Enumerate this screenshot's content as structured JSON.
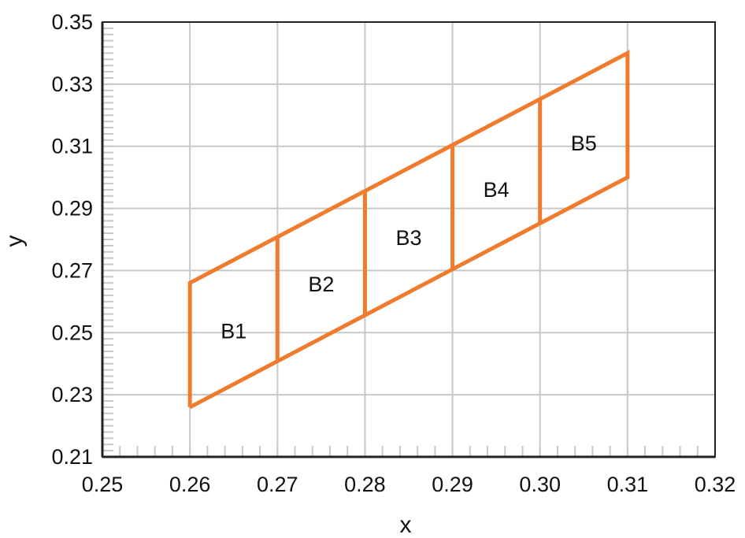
{
  "chart_data": {
    "type": "line",
    "title": "",
    "xlabel": "x",
    "ylabel": "y",
    "xlim": [
      0.25,
      0.32
    ],
    "ylim": [
      0.21,
      0.35
    ],
    "grid": true,
    "x_ticks": [
      "0.25",
      "0.26",
      "0.27",
      "0.28",
      "0.29",
      "0.30",
      "0.31",
      "0.32"
    ],
    "y_ticks": [
      "0.21",
      "0.23",
      "0.25",
      "0.27",
      "0.29",
      "0.31",
      "0.33",
      "0.35"
    ],
    "series": [
      {
        "values": [
          {
            "x": 0.26,
            "y": 0.226
          },
          {
            "x": 0.31,
            "y": 0.3
          },
          {
            "x": 0.31,
            "y": 0.34
          },
          {
            "x": 0.26,
            "y": 0.266
          },
          {
            "x": 0.26,
            "y": 0.226
          }
        ]
      }
    ],
    "dividers": [
      {
        "x": 0.27,
        "y_bottom": 0.2408,
        "y_top": 0.2808
      },
      {
        "x": 0.28,
        "y_bottom": 0.2556,
        "y_top": 0.2956
      },
      {
        "x": 0.29,
        "y_bottom": 0.2704,
        "y_top": 0.3104
      },
      {
        "x": 0.3,
        "y_bottom": 0.2852,
        "y_top": 0.3252
      }
    ],
    "annotations": [
      {
        "text": "B1",
        "x": 0.265,
        "y": 0.2505
      },
      {
        "text": "B2",
        "x": 0.275,
        "y": 0.2655
      },
      {
        "text": "B3",
        "x": 0.285,
        "y": 0.2805
      },
      {
        "text": "B4",
        "x": 0.295,
        "y": 0.296
      },
      {
        "text": "B5",
        "x": 0.305,
        "y": 0.311
      }
    ],
    "colors": {
      "series": "#f07b2c",
      "grid": "#c8c8c8",
      "axis": "#222222"
    }
  }
}
